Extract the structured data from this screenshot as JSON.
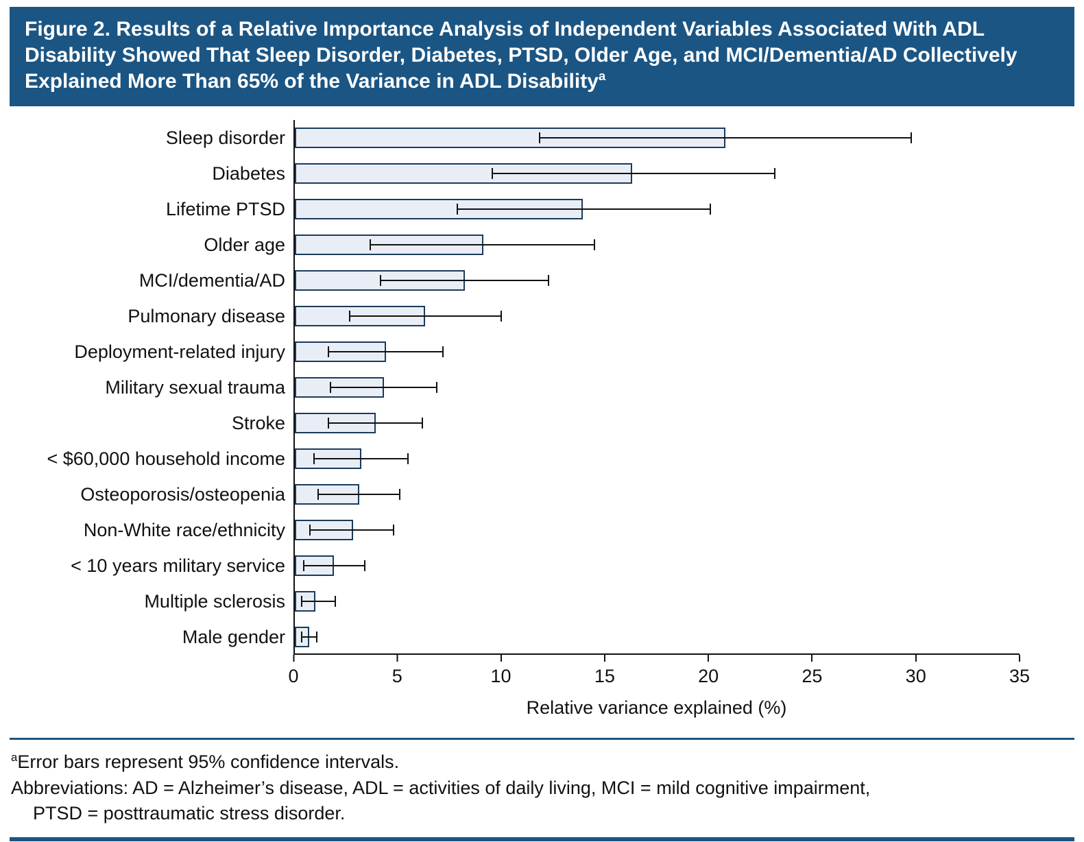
{
  "header": {
    "title": "Figure 2. Results of a Relative Importance Analysis of Independent Variables Associated With ADL Disability Showed That Sleep Disorder, Diabetes, PTSD, Older Age, and MCI/Dementia/AD Collectively Explained More Than 65% of the Variance in ADL Disability",
    "title_superscript": "a"
  },
  "chart_data": {
    "type": "bar",
    "orientation": "horizontal",
    "title": "",
    "categories": [
      "Sleep disorder",
      "Diabetes",
      "Lifetime PTSD",
      "Older age",
      "MCI/dementia/AD",
      "Pulmonary disease",
      "Deployment-related injury",
      "Military sexual trauma",
      "Stroke",
      "< $60,000 household income",
      "Osteoporosis/osteopenia",
      "Non-White race/ethnicity",
      "< 10 years military service",
      "Multiple sclerosis",
      "Male gender"
    ],
    "values": [
      20.8,
      16.3,
      13.9,
      9.1,
      8.2,
      6.3,
      4.4,
      4.3,
      3.9,
      3.2,
      3.1,
      2.8,
      1.9,
      1.0,
      0.7
    ],
    "ci_low": [
      11.8,
      9.5,
      7.8,
      3.6,
      4.1,
      2.6,
      1.6,
      1.7,
      1.6,
      0.9,
      1.1,
      0.7,
      0.4,
      0.3,
      0.3
    ],
    "ci_high": [
      29.8,
      23.2,
      20.1,
      14.5,
      12.3,
      10.0,
      7.2,
      6.9,
      6.2,
      5.5,
      5.1,
      4.8,
      3.4,
      2.0,
      1.1
    ],
    "error_bars": "95% confidence intervals",
    "xlabel": "Relative variance explained (%)",
    "ylabel": "",
    "xlim": [
      0,
      35
    ],
    "xticks": [
      0,
      5,
      10,
      15,
      20,
      25,
      30,
      35
    ],
    "grid": false,
    "legend": null
  },
  "colors": {
    "header_bg": "#1B5583",
    "bar_fill": "#E9EEF6",
    "bar_stroke": "#1B3A5A",
    "axis": "#111111",
    "rule": "#1B5583"
  },
  "footnotes": {
    "note1_sup": "a",
    "note1": "Error bars represent 95% confidence intervals.",
    "note2_line1": "Abbreviations: AD = Alzheimer’s disease, ADL = activities of daily living, MCI = mild cognitive impairment,",
    "note2_line2": "PTSD = posttraumatic stress disorder."
  }
}
